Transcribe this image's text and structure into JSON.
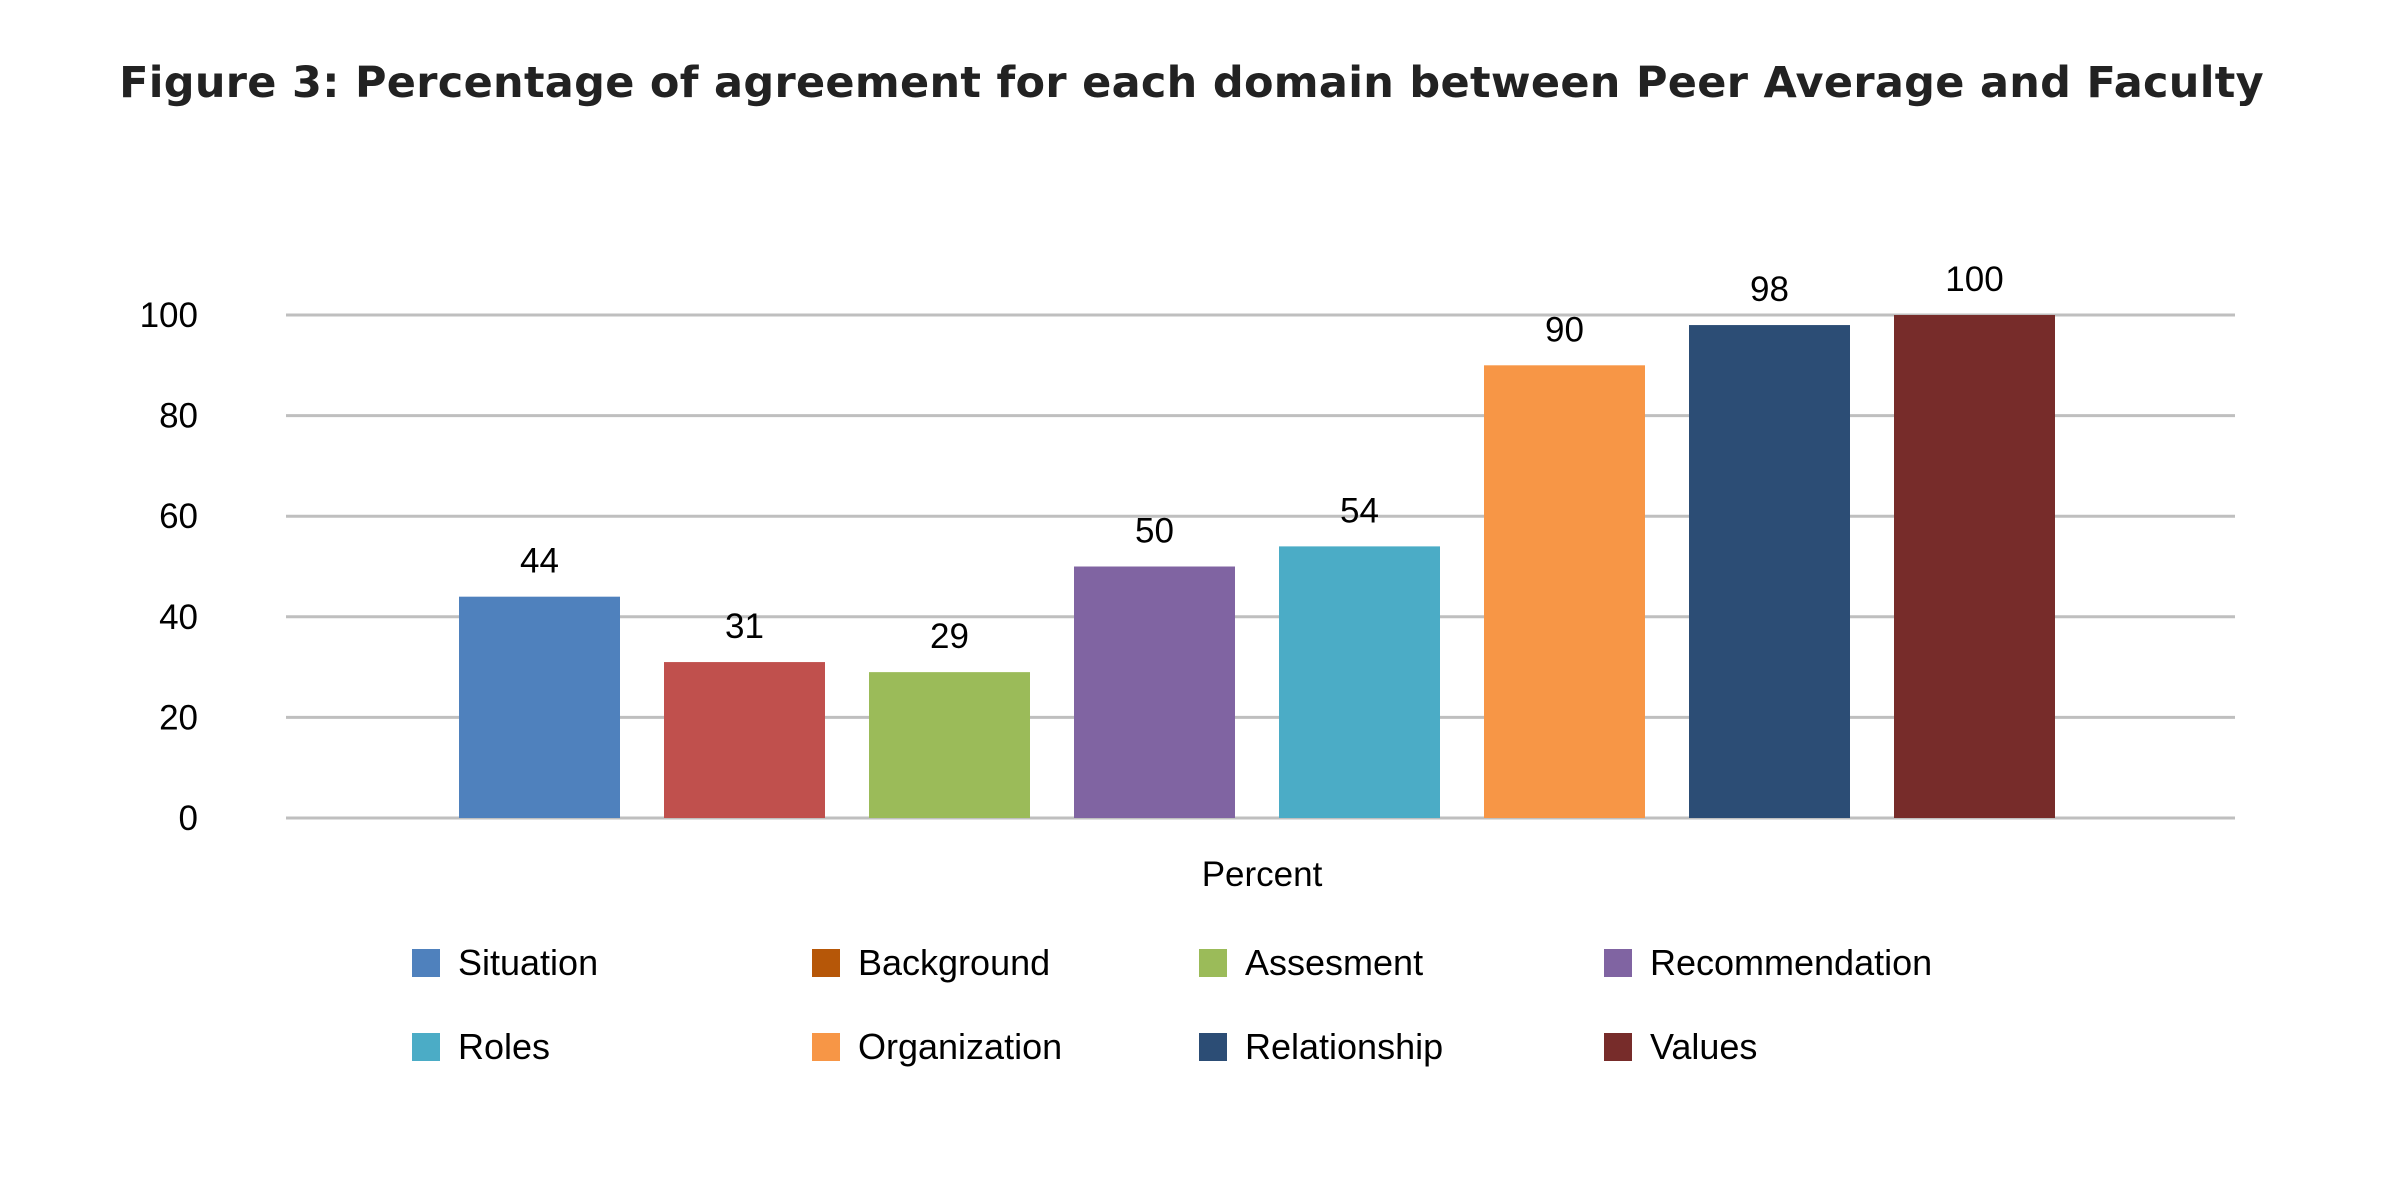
{
  "chart_data": {
    "type": "bar",
    "title": "Figure 3: Percentage of agreement for each domain between Peer Average and Faculty",
    "xlabel": "Percent",
    "ylabel": "",
    "ylim": [
      0,
      100
    ],
    "yticks": [
      "0",
      "20",
      "40",
      "60",
      "80",
      "100"
    ],
    "grid": true,
    "legend_position": "bottom",
    "categories": [
      "Percent"
    ],
    "series": [
      {
        "name": "Situation",
        "values": [
          44
        ],
        "label": "44",
        "color": "#4F81BD",
        "legend_color": "#4F81BD"
      },
      {
        "name": "Background",
        "values": [
          31
        ],
        "label": "31",
        "color": "#C0504D",
        "legend_color": "#B65708"
      },
      {
        "name": "Assesment",
        "values": [
          29
        ],
        "label": "29",
        "color": "#9BBB59",
        "legend_color": "#9BBB59"
      },
      {
        "name": "Recommendation",
        "values": [
          50
        ],
        "label": "50",
        "color": "#8064A2",
        "legend_color": "#8064A2"
      },
      {
        "name": "Roles",
        "values": [
          54
        ],
        "label": "54",
        "color": "#4BACC6",
        "legend_color": "#4BACC6"
      },
      {
        "name": "Organization",
        "values": [
          90
        ],
        "label": "90",
        "color": "#F79646",
        "legend_color": "#F79646"
      },
      {
        "name": "Relationship",
        "values": [
          98
        ],
        "label": "98",
        "color": "#2C4D75",
        "legend_color": "#2C4D75"
      },
      {
        "name": "Values",
        "values": [
          100
        ],
        "label": "100",
        "color": "#772C2A",
        "legend_color": "#772C2A"
      }
    ]
  }
}
